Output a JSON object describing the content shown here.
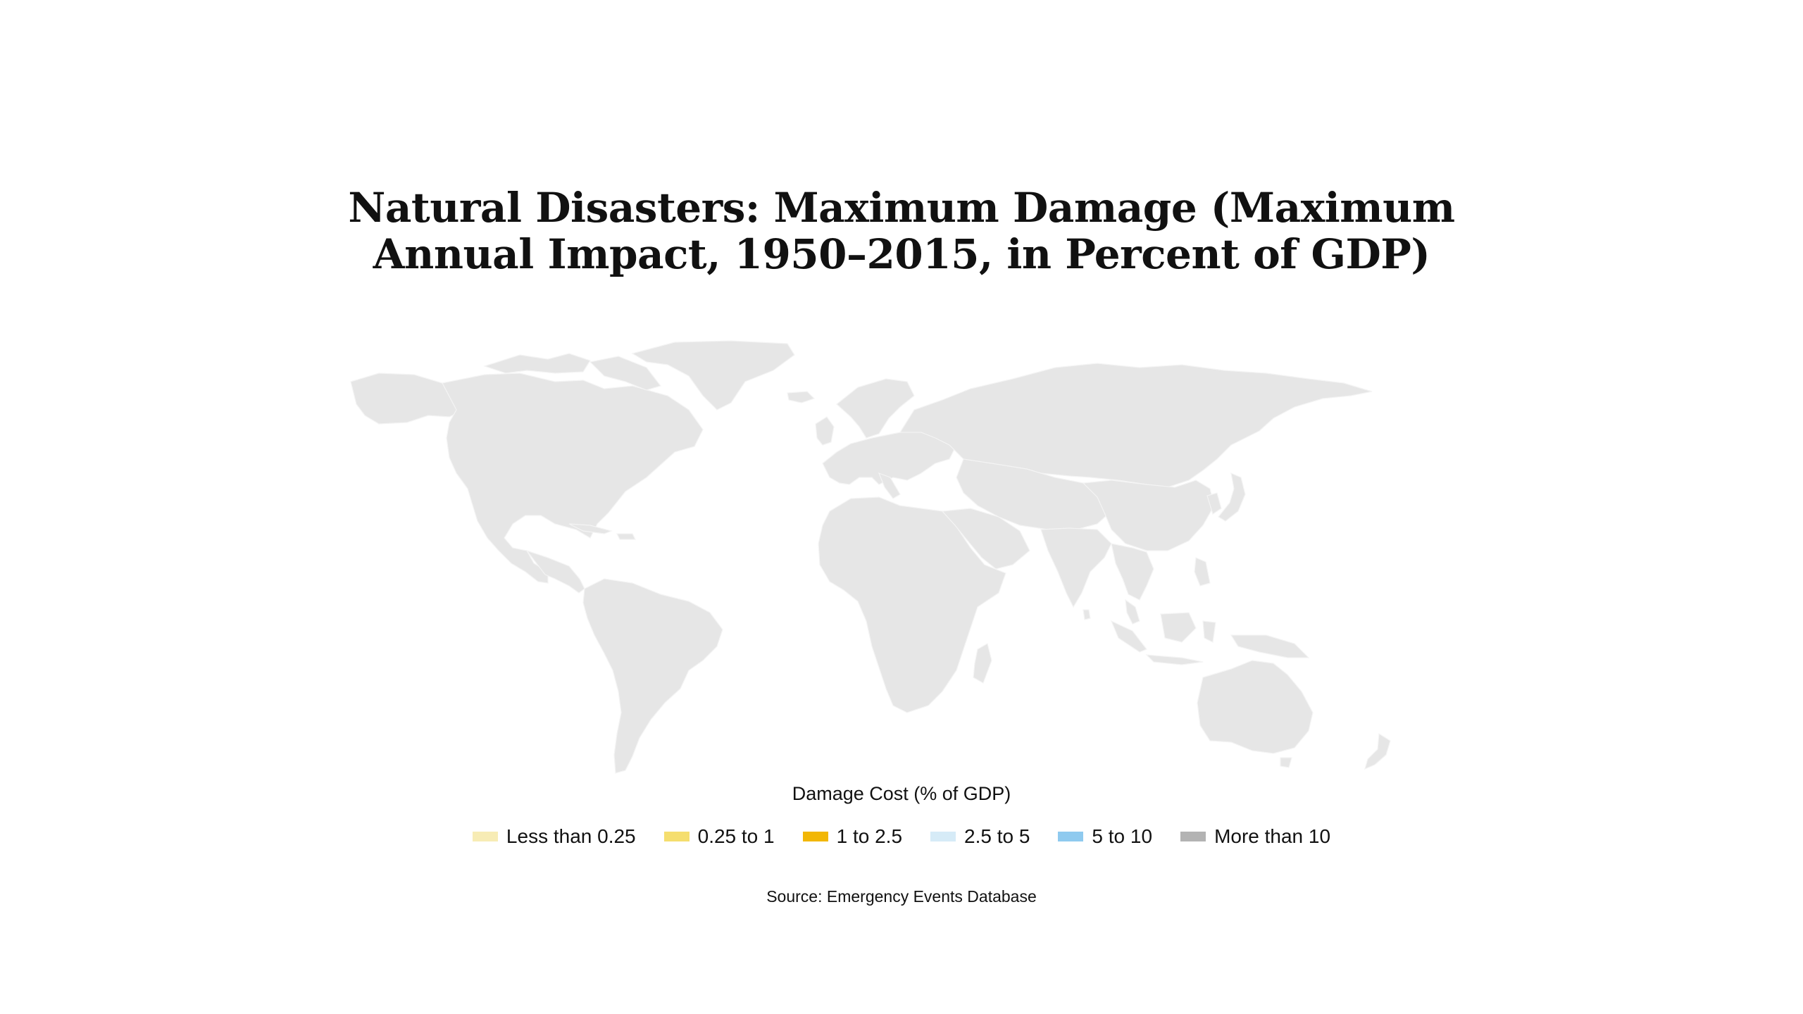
{
  "title": {
    "line1": "Natural Disasters: Maximum Damage (Maximum",
    "line2": "Annual Impact, 1950–2015, in Percent of GDP)"
  },
  "map": {
    "land_color": "#e6e6e6",
    "border_color": "#f4f4f4"
  },
  "legend": {
    "title": "Damage Cost (% of GDP)",
    "items": [
      {
        "label": "Less than 0.25",
        "color": "#f7ecb5"
      },
      {
        "label": "0.25 to 1",
        "color": "#f5de6e"
      },
      {
        "label": "1 to 2.5",
        "color": "#f2b705"
      },
      {
        "label": "2.5 to 5",
        "color": "#d6ebf7"
      },
      {
        "label": "5 to 10",
        "color": "#8fcaef"
      },
      {
        "label": "More than 10",
        "color": "#b3b3b3"
      }
    ]
  },
  "source": "Source: Emergency Events Database"
}
